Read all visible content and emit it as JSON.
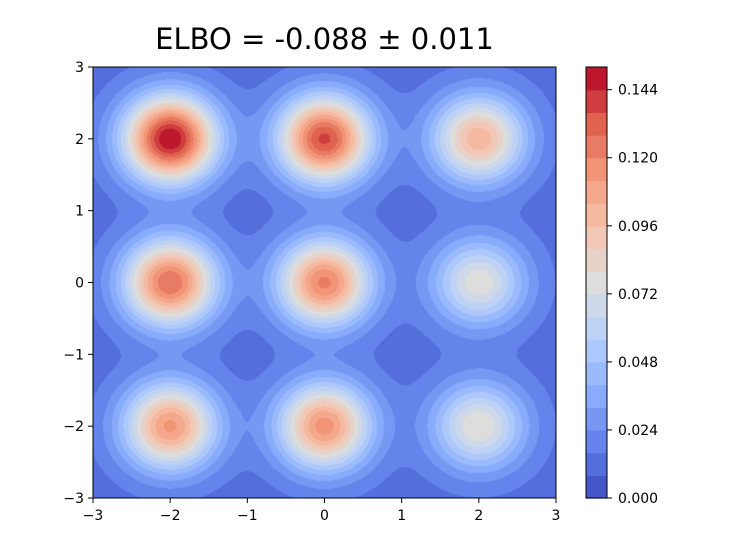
{
  "chart_data": {
    "type": "heatmap",
    "subtype": "filled-contour",
    "title": "ELBO = -0.088 ± 0.011",
    "xlabel": "",
    "ylabel": "",
    "xlim": [
      -3,
      3
    ],
    "ylim": [
      -3,
      3
    ],
    "xticks": [
      -3,
      -2,
      -1,
      0,
      1,
      2,
      3
    ],
    "yticks": [
      -3,
      -2,
      -1,
      0,
      1,
      2,
      3
    ],
    "xtick_labels": [
      "−3",
      "−2",
      "−1",
      "0",
      "1",
      "2",
      "3"
    ],
    "ytick_labels": [
      "−3",
      "−2",
      "−1",
      "0",
      "1",
      "2",
      "3"
    ],
    "grid": false,
    "colormap": "coolwarm",
    "colorbar": {
      "min": 0.0,
      "max": 0.152,
      "levels": 19,
      "ticks": [
        0.0,
        0.024,
        0.048,
        0.072,
        0.096,
        0.12,
        0.144
      ],
      "tick_labels": [
        "0.000",
        "0.024",
        "0.048",
        "0.072",
        "0.096",
        "0.120",
        "0.144"
      ]
    },
    "peaks": [
      {
        "x": -2,
        "y": 2,
        "value": 0.152
      },
      {
        "x": 0,
        "y": 2,
        "value": 0.138
      },
      {
        "x": 2,
        "y": 2,
        "value": 0.102
      },
      {
        "x": -2,
        "y": 0,
        "value": 0.128
      },
      {
        "x": 0,
        "y": 0,
        "value": 0.122
      },
      {
        "x": 2,
        "y": 0,
        "value": 0.078
      },
      {
        "x": -2,
        "y": -2,
        "value": 0.114
      },
      {
        "x": 0,
        "y": -2,
        "value": 0.116
      },
      {
        "x": 2,
        "y": -2,
        "value": 0.08
      }
    ],
    "peak_width": 0.42,
    "background_value": 0.012
  }
}
